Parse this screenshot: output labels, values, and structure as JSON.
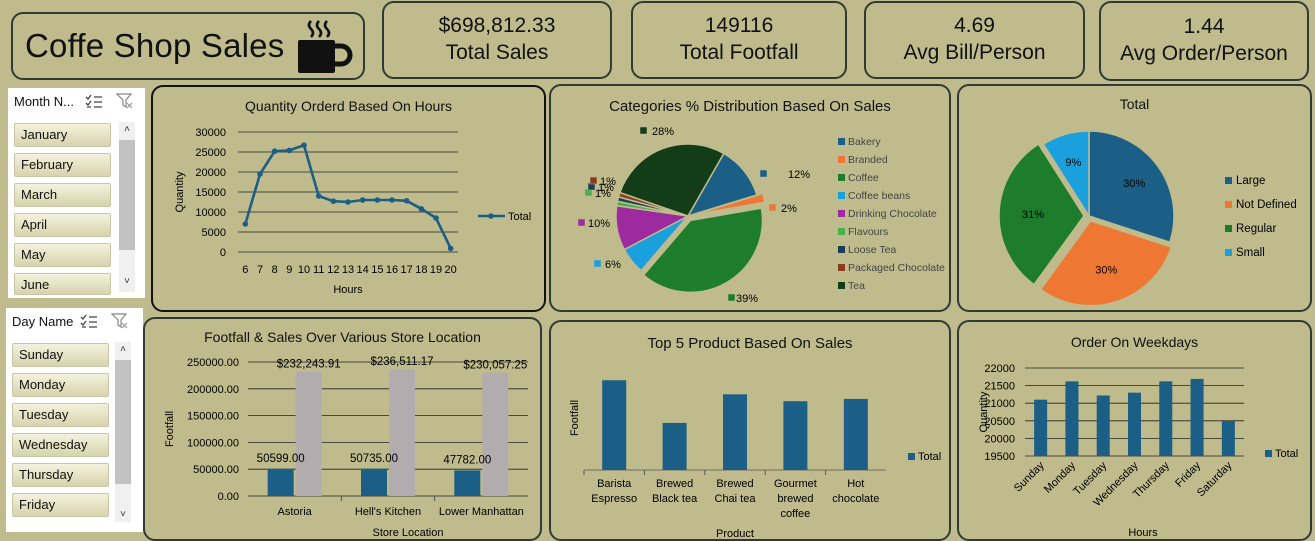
{
  "header": {
    "title": "Coffe Shop Sales"
  },
  "kpis": [
    {
      "value": "$698,812.33",
      "label": "Total Sales"
    },
    {
      "value": "149116",
      "label": "Total Footfall"
    },
    {
      "value": "4.69",
      "label": "Avg Bill/Person"
    },
    {
      "value": "1.44",
      "label": "Avg Order/Person"
    }
  ],
  "slicers": {
    "month": {
      "header": "Month N...",
      "items": [
        "January",
        "February",
        "March",
        "April",
        "May",
        "June"
      ]
    },
    "day": {
      "header": "Day Name",
      "items": [
        "Sunday",
        "Monday",
        "Tuesday",
        "Wednesday",
        "Thursday",
        "Friday"
      ]
    }
  },
  "colors": {
    "background": "#bfbb8d",
    "navy": "#1b5f86",
    "series_gray": "#b3acae"
  },
  "chart_data": [
    {
      "id": "hours",
      "type": "line",
      "title": "Quantity Orderd Based On Hours",
      "xlabel": "Hours",
      "ylabel": "Quantity",
      "x": [
        "6",
        "7",
        "8",
        "9",
        "10",
        "11",
        "12",
        "13",
        "14",
        "15",
        "16",
        "17",
        "18",
        "19",
        "20"
      ],
      "series": [
        {
          "name": "Total",
          "values": [
            7000,
            19500,
            25200,
            25400,
            26700,
            14000,
            12700,
            12500,
            13000,
            13000,
            13000,
            12800,
            10800,
            8500,
            900
          ]
        }
      ],
      "ylim": [
        0,
        30000
      ],
      "yticks": [
        "0",
        "5000",
        "10000",
        "15000",
        "20000",
        "25000",
        "30000"
      ],
      "grid": true,
      "legend": "right"
    },
    {
      "id": "categories",
      "type": "pie",
      "title": "Categories % Distribution Based On Sales",
      "labels": [
        "Bakery",
        "Branded",
        "Coffee",
        "Coffee beans",
        "Drinking Chocolate",
        "Flavours",
        "Loose Tea",
        "Packaged Chocolate",
        "Tea"
      ],
      "values": [
        12,
        2,
        39,
        6,
        10,
        1,
        1,
        1,
        28
      ],
      "value_labels": [
        "12%",
        "2%",
        "39%",
        "6%",
        "10%",
        "1%",
        "1%",
        "1%",
        "28%"
      ],
      "colors": [
        "#1b5f86",
        "#ef7734",
        "#1e7d2d",
        "#1aa0dc",
        "#9d2a9e",
        "#49b04c",
        "#1b3e52",
        "#8d3d1f",
        "#133d18"
      ],
      "legend": "right"
    },
    {
      "id": "size",
      "type": "pie",
      "title": "Total",
      "labels": [
        "Large",
        "Not Defined",
        "Regular",
        "Small"
      ],
      "values": [
        30,
        30,
        31,
        9
      ],
      "value_labels": [
        "30%",
        "30%",
        "31%",
        "9%"
      ],
      "colors": [
        "#1b5f86",
        "#ef7734",
        "#1e7d2d",
        "#1aa0dc"
      ],
      "legend": "right"
    },
    {
      "id": "stores",
      "type": "bar",
      "title": "Footfall & Sales Over Various Store Location",
      "xlabel": "Store Location",
      "ylabel": "Footfall",
      "categories": [
        "Astoria",
        "Hell's Kitchen",
        "Lower Manhattan"
      ],
      "series": [
        {
          "values": [
            50599,
            50735,
            47782
          ],
          "labels": [
            "50599.00",
            "50735.00",
            "47782.00"
          ]
        },
        {
          "values": [
            232243.91,
            236511.17,
            230057.25
          ],
          "labels": [
            "$232,243.91",
            "$236,511.17",
            "$230,057.25"
          ]
        }
      ],
      "ylim": [
        0,
        250000
      ],
      "yticks": [
        "0.00",
        "50000.00",
        "100000.00",
        "150000.00",
        "200000.00",
        "250000.00"
      ],
      "grid": true
    },
    {
      "id": "products",
      "type": "bar",
      "title": "Top 5 Product Based On Sales",
      "xlabel": "Product",
      "ylabel": "Footfall",
      "categories": [
        [
          "Barista",
          "Espresso"
        ],
        [
          "Brewed",
          "Black tea"
        ],
        [
          "Brewed",
          "Chai tea"
        ],
        [
          "Gourmet",
          "brewed",
          "coffee"
        ],
        [
          "Hot",
          "chocolate"
        ]
      ],
      "series": [
        {
          "name": "Total",
          "values": [
            91406,
            47933,
            77082,
            70034,
            72416
          ]
        }
      ],
      "ylim": [
        0,
        110000
      ],
      "grid": false,
      "legend": "right"
    },
    {
      "id": "weekdays",
      "type": "bar",
      "title": "Order On Weekdays",
      "xlabel": "Hours",
      "ylabel": "Quantity",
      "categories": [
        "Sunday",
        "Monday",
        "Tuesday",
        "Wednesday",
        "Thursday",
        "Friday",
        "Saturday"
      ],
      "series": [
        {
          "name": "Total",
          "values": [
            21100,
            21620,
            21220,
            21300,
            21620,
            21690,
            20490
          ]
        }
      ],
      "ylim": [
        19500,
        22000
      ],
      "yticks": [
        "19500",
        "20000",
        "20500",
        "21000",
        "21500",
        "22000"
      ],
      "grid": true,
      "legend": "right"
    }
  ]
}
